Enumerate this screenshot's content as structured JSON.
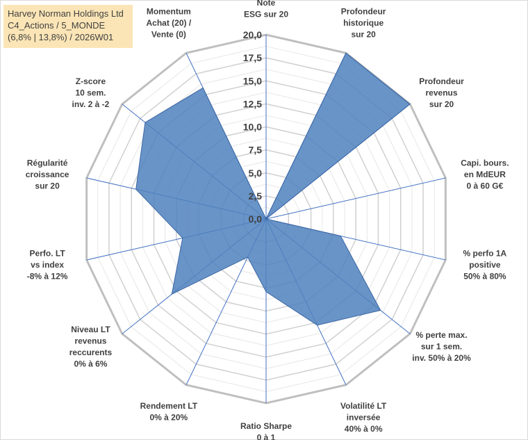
{
  "chart_data": {
    "type": "radar",
    "title_lines": [
      "Harvey Norman Holdings Ltd",
      "C4_Actions / 5_MONDE",
      "(6,8% | 13,8%) / 2026W01"
    ],
    "r_range": [
      0,
      20
    ],
    "ticks": [
      "0,0",
      "2,5",
      "5,0",
      "7,5",
      "10,0",
      "12,5",
      "15,0",
      "17,5",
      "20,0"
    ],
    "grid": true,
    "fill_color": "#4f81bd",
    "axes": [
      {
        "lines": [
          "Note",
          "ESG sur 20"
        ],
        "value": 0
      },
      {
        "lines": [
          "Profondeur",
          "historique",
          "sur 20"
        ],
        "value": 20
      },
      {
        "lines": [
          "Profondeur",
          "revenus",
          "sur 20"
        ],
        "value": 20
      },
      {
        "lines": [
          "Capi. bours.",
          "en MdEUR",
          "0 à 60 G€"
        ],
        "value": 0
      },
      {
        "lines": [
          "% perfo 1A",
          "positive",
          "50% à 80%"
        ],
        "value": 8.3
      },
      {
        "lines": [
          "% perte max.",
          "sur 1 sem.",
          "inv. 50% à 20%"
        ],
        "value": 15.9
      },
      {
        "lines": [
          "Volatilité LT",
          "inversée",
          "40% à 0%"
        ],
        "value": 12.8
      },
      {
        "lines": [
          "Ratio Sharpe",
          "0 à 1"
        ],
        "value": 7.9
      },
      {
        "lines": [
          "Rendement LT",
          "0% à 20%"
        ],
        "value": 4.6
      },
      {
        "lines": [
          "Niveau LT",
          "revenus",
          "reccurents",
          "0% à 6%"
        ],
        "value": 13.1
      },
      {
        "lines": [
          "Perfo. LT",
          "vs index",
          "-8% à 12%"
        ],
        "value": 9.3
      },
      {
        "lines": [
          "Régularité",
          "croissance",
          "sur 20"
        ],
        "value": 14.5
      },
      {
        "lines": [
          "Z-score",
          "10 sem.",
          "inv. 2 à -2"
        ],
        "value": 16.8
      },
      {
        "lines": [
          "Momentum",
          "Achat (20) /",
          "Vente (0)"
        ],
        "value": 15.8
      }
    ]
  }
}
